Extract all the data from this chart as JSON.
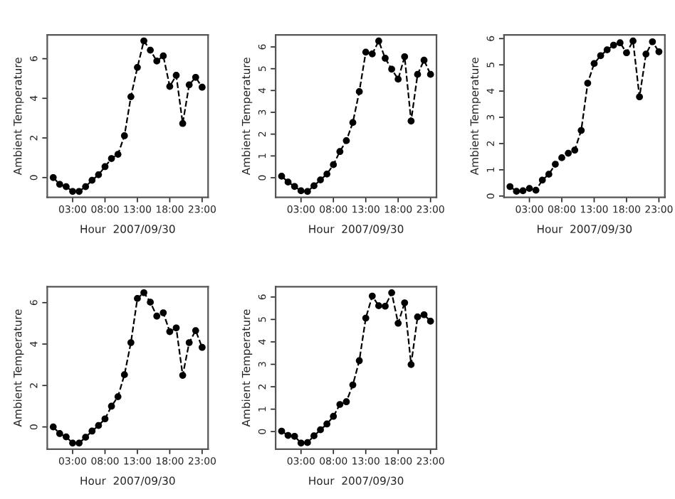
{
  "chart_data": [
    {
      "type": "line",
      "xlabel": "Hour  2007/09/30",
      "ylabel": "Ambient Temperature",
      "x": [
        0,
        1,
        2,
        3,
        4,
        5,
        6,
        7,
        8,
        9,
        10,
        11,
        12,
        13,
        14,
        15,
        16,
        17,
        18,
        19,
        20,
        21,
        22,
        23
      ],
      "xlim": [
        -0.92,
        23.92
      ],
      "xticks": [
        {
          "value": 3,
          "label": "03:00"
        },
        {
          "value": 8,
          "label": "08:00"
        },
        {
          "value": 13,
          "label": "13:00"
        },
        {
          "value": 18,
          "label": "18:00"
        },
        {
          "value": 23,
          "label": "23:00"
        }
      ],
      "ylim": [
        -1.0,
        7.2
      ],
      "yticks": [
        0,
        2,
        4,
        6
      ],
      "marker": "circle",
      "line_style": "dashed",
      "grid": false,
      "series": [
        {
          "color": "#000000",
          "values": [
            0,
            -0.34,
            -0.46,
            -0.7,
            -0.7,
            -0.46,
            -0.14,
            0.14,
            0.55,
            0.96,
            1.17,
            2.11,
            4.08,
            5.56,
            6.9,
            6.43,
            5.88,
            6.14,
            4.6,
            5.16,
            2.73,
            4.68,
            5.06,
            4.56
          ]
        }
      ]
    },
    {
      "type": "line",
      "xlabel": "Hour  2007/09/30",
      "ylabel": "Ambient Temperature",
      "x": [
        0,
        1,
        2,
        3,
        4,
        5,
        6,
        7,
        8,
        9,
        10,
        11,
        12,
        13,
        14,
        15,
        16,
        17,
        18,
        19,
        20,
        21,
        22,
        23
      ],
      "xlim": [
        -0.92,
        23.92
      ],
      "xticks": [
        {
          "value": 3,
          "label": "03:00"
        },
        {
          "value": 8,
          "label": "08:00"
        },
        {
          "value": 13,
          "label": "13:00"
        },
        {
          "value": 18,
          "label": "18:00"
        },
        {
          "value": 23,
          "label": "23:00"
        }
      ],
      "ylim": [
        -0.9,
        6.55
      ],
      "yticks": [
        0,
        1,
        2,
        3,
        4,
        5,
        6
      ],
      "marker": "circle",
      "line_style": "dashed",
      "grid": false,
      "series": [
        {
          "color": "#000000",
          "values": [
            0.07,
            -0.2,
            -0.4,
            -0.6,
            -0.63,
            -0.37,
            -0.1,
            0.17,
            0.6,
            1.2,
            1.7,
            2.53,
            3.95,
            5.76,
            5.68,
            6.27,
            5.48,
            4.98,
            4.52,
            5.55,
            2.6,
            4.74,
            5.39,
            4.74
          ]
        }
      ]
    },
    {
      "type": "line",
      "xlabel": "Hour  2007/09/30",
      "ylabel": "Ambient Temperature",
      "x": [
        0,
        1,
        2,
        3,
        4,
        5,
        6,
        7,
        8,
        9,
        10,
        11,
        12,
        13,
        14,
        15,
        16,
        17,
        18,
        19,
        20,
        21,
        22,
        23
      ],
      "xlim": [
        -0.92,
        23.92
      ],
      "xticks": [
        {
          "value": 3,
          "label": "03:00"
        },
        {
          "value": 8,
          "label": "08:00"
        },
        {
          "value": 13,
          "label": "13:00"
        },
        {
          "value": 18,
          "label": "18:00"
        },
        {
          "value": 23,
          "label": "23:00"
        }
      ],
      "ylim": [
        -0.05,
        6.14
      ],
      "yticks": [
        0,
        1,
        2,
        3,
        4,
        5,
        6
      ],
      "marker": "circle",
      "line_style": "dashed",
      "grid": false,
      "series": [
        {
          "color": "#000000",
          "values": [
            0.36,
            0.18,
            0.2,
            0.29,
            0.22,
            0.61,
            0.83,
            1.21,
            1.46,
            1.63,
            1.75,
            2.5,
            4.3,
            5.05,
            5.35,
            5.57,
            5.75,
            5.84,
            5.46,
            5.91,
            3.78,
            5.41,
            5.88,
            5.5
          ]
        }
      ]
    },
    {
      "type": "line",
      "xlabel": "Hour  2007/09/30",
      "ylabel": "Ambient Temperature",
      "x": [
        0,
        1,
        2,
        3,
        4,
        5,
        6,
        7,
        8,
        9,
        10,
        11,
        12,
        13,
        14,
        15,
        16,
        17,
        18,
        19,
        20,
        21,
        22,
        23
      ],
      "xlim": [
        -0.92,
        23.92
      ],
      "xticks": [
        {
          "value": 3,
          "label": "03:00"
        },
        {
          "value": 8,
          "label": "08:00"
        },
        {
          "value": 13,
          "label": "13:00"
        },
        {
          "value": 18,
          "label": "18:00"
        },
        {
          "value": 23,
          "label": "23:00"
        }
      ],
      "ylim": [
        -1.07,
        6.77
      ],
      "yticks": [
        0,
        2,
        4,
        6
      ],
      "marker": "circle",
      "line_style": "dashed",
      "grid": false,
      "series": [
        {
          "color": "#000000",
          "values": [
            0,
            -0.32,
            -0.48,
            -0.78,
            -0.78,
            -0.5,
            -0.2,
            0.07,
            0.39,
            1.0,
            1.46,
            2.52,
            4.07,
            6.2,
            6.48,
            6.02,
            5.35,
            5.51,
            4.6,
            4.78,
            2.49,
            4.07,
            4.65,
            3.84
          ]
        }
      ]
    },
    {
      "type": "line",
      "xlabel": "Hour  2007/09/30",
      "ylabel": "Ambient Temperature",
      "x": [
        0,
        1,
        2,
        3,
        4,
        5,
        6,
        7,
        8,
        9,
        10,
        11,
        12,
        13,
        14,
        15,
        16,
        17,
        18,
        19,
        20,
        21,
        22,
        23
      ],
      "xlim": [
        -0.92,
        23.92
      ],
      "xticks": [
        {
          "value": 3,
          "label": "03:00"
        },
        {
          "value": 8,
          "label": "08:00"
        },
        {
          "value": 13,
          "label": "13:00"
        },
        {
          "value": 18,
          "label": "18:00"
        },
        {
          "value": 23,
          "label": "23:00"
        }
      ],
      "ylim": [
        -0.78,
        6.46
      ],
      "yticks": [
        0,
        1,
        2,
        3,
        4,
        5,
        6
      ],
      "marker": "circle",
      "line_style": "dashed",
      "grid": false,
      "series": [
        {
          "color": "#000000",
          "values": [
            0.02,
            -0.17,
            -0.21,
            -0.51,
            -0.49,
            -0.19,
            0.08,
            0.34,
            0.68,
            1.21,
            1.33,
            2.08,
            3.16,
            5.06,
            6.04,
            5.61,
            5.59,
            6.19,
            4.83,
            5.74,
            2.99,
            5.11,
            5.21,
            4.92
          ]
        }
      ]
    }
  ]
}
